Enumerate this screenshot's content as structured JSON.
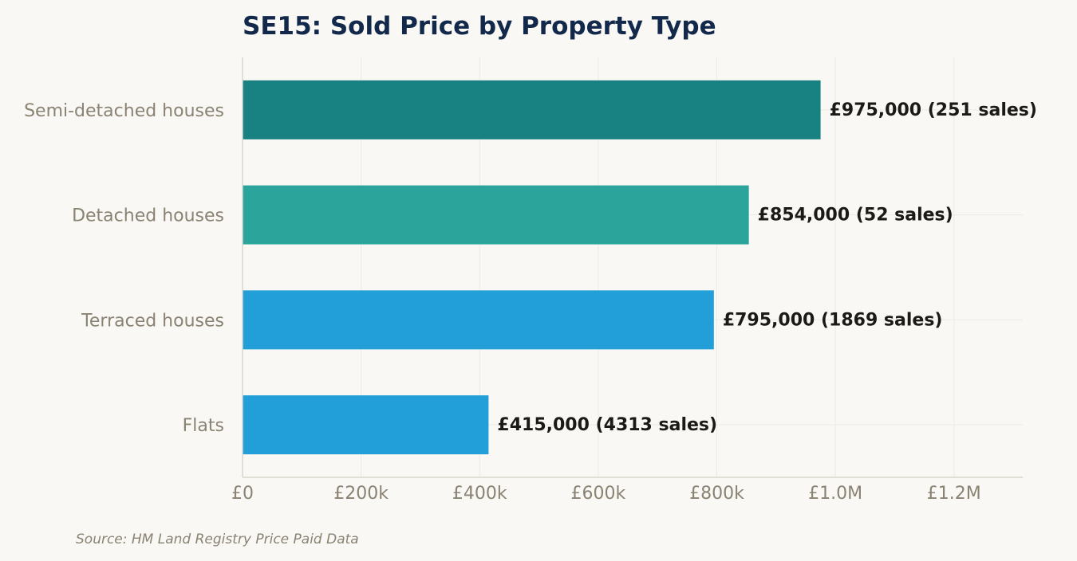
{
  "chart_data": {
    "type": "bar",
    "orientation": "horizontal",
    "title": "SE15: Sold Price by Property Type",
    "xlabel": "",
    "ylabel": "",
    "categories": [
      "Semi-detached houses",
      "Detached houses",
      "Terraced houses",
      "Flats"
    ],
    "values": [
      975000,
      854000,
      795000,
      415000
    ],
    "sales": [
      251,
      52,
      1869,
      4313
    ],
    "value_labels": [
      "£975,000  (251 sales)",
      "£854,000  (52 sales)",
      "£795,000  (1869 sales)",
      "£415,000  (4313 sales)"
    ],
    "bar_colors": [
      "#188181",
      "#2ba59c",
      "#229ed8",
      "#229ed8"
    ],
    "xlim": [
      0,
      1316000
    ],
    "x_ticks": [
      0,
      200000,
      400000,
      600000,
      800000,
      1000000,
      1200000
    ],
    "x_tick_labels": [
      "£0",
      "£200k",
      "£400k",
      "£600k",
      "£800k",
      "£1.0M",
      "£1.2M"
    ],
    "grid": true,
    "legend": "none"
  },
  "source": "Source: HM Land Registry Price Paid Data"
}
